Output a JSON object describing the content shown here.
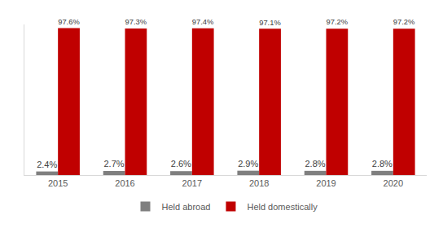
{
  "chart_data": {
    "type": "bar",
    "categories": [
      "2015",
      "2016",
      "2017",
      "2018",
      "2019",
      "2020"
    ],
    "series": [
      {
        "name": "Held abroad",
        "color": "#7f7f7f",
        "values": [
          2.4,
          2.7,
          2.6,
          2.9,
          2.8,
          2.8
        ],
        "value_labels": [
          "2.4%",
          "2.7%",
          "2.6%",
          "2.9%",
          "2.8%",
          "2.8%"
        ]
      },
      {
        "name": "Held domestically",
        "color": "#c00000",
        "values": [
          97.6,
          97.3,
          97.4,
          97.1,
          97.2,
          97.2
        ],
        "value_labels": [
          "97.6%",
          "97.3%",
          "97.4%",
          "97.1%",
          "97.2%",
          "97.2%"
        ]
      }
    ],
    "ylim": [
      0,
      100
    ],
    "grid": false,
    "legend": "bottom",
    "data_labels": true,
    "tick_labels": "x"
  }
}
